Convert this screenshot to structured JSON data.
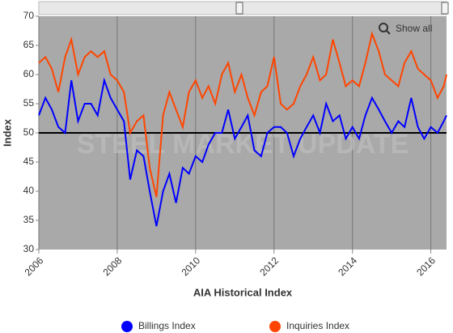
{
  "chart_data": {
    "type": "line",
    "x_label": "AIA Historical Index",
    "y_label": "Index",
    "watermark": "STEEL MARKET UPDATE",
    "reset_button": "Show all",
    "reference_line": 50,
    "x": [
      2006.0,
      2006.17,
      2006.33,
      2006.5,
      2006.67,
      2006.83,
      2007.0,
      2007.17,
      2007.33,
      2007.5,
      2007.67,
      2007.83,
      2008.0,
      2008.17,
      2008.33,
      2008.5,
      2008.67,
      2008.83,
      2009.0,
      2009.17,
      2009.33,
      2009.5,
      2009.67,
      2009.83,
      2010.0,
      2010.17,
      2010.33,
      2010.5,
      2010.67,
      2010.83,
      2011.0,
      2011.17,
      2011.33,
      2011.5,
      2011.67,
      2011.83,
      2012.0,
      2012.17,
      2012.33,
      2012.5,
      2012.67,
      2012.83,
      2013.0,
      2013.17,
      2013.33,
      2013.5,
      2013.67,
      2013.83,
      2014.0,
      2014.17,
      2014.33,
      2014.5,
      2014.67,
      2014.83,
      2015.0,
      2015.17,
      2015.33,
      2015.5,
      2015.67,
      2015.83,
      2016.0,
      2016.17,
      2016.33,
      2016.4
    ],
    "series": [
      {
        "name": "Billings Index",
        "color": "#0000ff",
        "values": [
          53,
          56,
          54,
          51,
          50,
          59,
          52,
          55,
          55,
          53,
          59,
          56,
          54,
          52,
          42,
          47,
          46,
          40,
          34,
          40,
          43,
          38,
          44,
          43,
          46,
          45,
          48,
          50,
          50,
          54,
          49,
          51,
          53,
          47,
          46,
          50,
          51,
          51,
          50,
          46,
          49,
          51,
          53,
          50,
          55,
          52,
          53,
          49,
          51,
          49,
          53,
          56,
          54,
          52,
          50,
          52,
          51,
          56,
          51,
          49,
          51,
          50,
          52,
          53
        ]
      },
      {
        "name": "Inquiries Index",
        "color": "#ff4500",
        "values": [
          62,
          63,
          61,
          57,
          63,
          66,
          60,
          63,
          64,
          63,
          64,
          60,
          59,
          57,
          50,
          52,
          53,
          44,
          39,
          53,
          57,
          54,
          51,
          57,
          59,
          56,
          58,
          55,
          60,
          62,
          57,
          60,
          56,
          53,
          57,
          58,
          63,
          55,
          54,
          55,
          58,
          60,
          63,
          59,
          60,
          66,
          62,
          58,
          59,
          58,
          62,
          67,
          64,
          60,
          59,
          58,
          62,
          64,
          61,
          60,
          59,
          56,
          58,
          60
        ]
      }
    ],
    "xlim": [
      2006,
      2016.4
    ],
    "xticks": [
      2006,
      2008,
      2010,
      2012,
      2014,
      2016
    ],
    "ylim": [
      30,
      70
    ],
    "yticks": [
      30,
      35,
      40,
      45,
      50,
      55,
      60,
      65,
      70
    ],
    "grid": true,
    "legend": "bottom"
  }
}
